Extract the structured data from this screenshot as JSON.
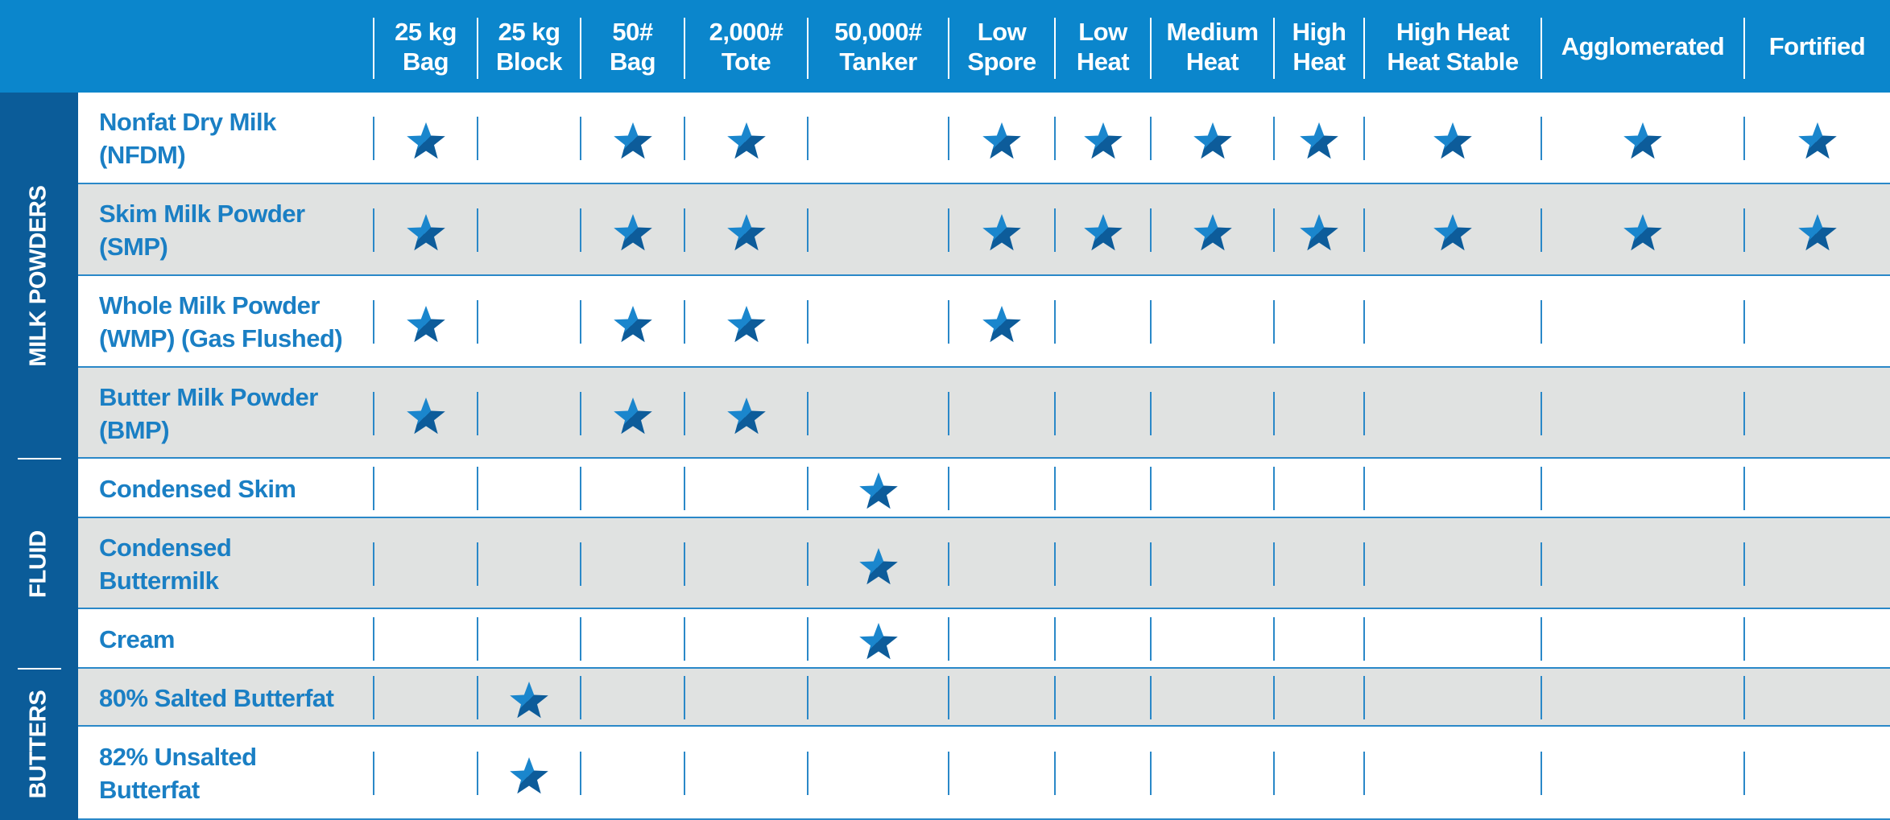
{
  "header": {
    "columns": [
      [
        "25 kg",
        "Bag"
      ],
      [
        "25 kg",
        "Block"
      ],
      [
        "50#",
        "Bag"
      ],
      [
        "2,000#",
        "Tote"
      ],
      [
        "50,000#",
        "Tanker"
      ],
      [
        "Low",
        "Spore"
      ],
      [
        "Low",
        "Heat"
      ],
      [
        "Medium",
        "Heat"
      ],
      [
        "High",
        "Heat"
      ],
      [
        "High Heat",
        "Heat Stable"
      ],
      [
        "Agglomerated"
      ],
      [
        "Fortified"
      ]
    ]
  },
  "groups": [
    {
      "label": "MILK POWDERS",
      "rows": [
        {
          "label": [
            "Nonfat Dry Milk",
            "(NFDM)"
          ],
          "cells": [
            true,
            false,
            true,
            true,
            false,
            true,
            true,
            true,
            true,
            true,
            true,
            true
          ]
        },
        {
          "label": [
            "Skim Milk Powder",
            "(SMP)"
          ],
          "cells": [
            true,
            false,
            true,
            true,
            false,
            true,
            true,
            true,
            true,
            true,
            true,
            true
          ]
        },
        {
          "label": [
            "Whole Milk Powder",
            "(WMP) (Gas Flushed)"
          ],
          "cells": [
            true,
            false,
            true,
            true,
            false,
            true,
            false,
            false,
            false,
            false,
            false,
            false
          ]
        },
        {
          "label": [
            "Butter Milk Powder",
            "(BMP)"
          ],
          "cells": [
            true,
            false,
            true,
            true,
            false,
            false,
            false,
            false,
            false,
            false,
            false,
            false
          ]
        }
      ]
    },
    {
      "label": "FLUID",
      "rows": [
        {
          "label": [
            "Condensed Skim"
          ],
          "cells": [
            false,
            false,
            false,
            false,
            true,
            false,
            false,
            false,
            false,
            false,
            false,
            false
          ]
        },
        {
          "label": [
            "Condensed",
            "Buttermilk"
          ],
          "cells": [
            false,
            false,
            false,
            false,
            true,
            false,
            false,
            false,
            false,
            false,
            false,
            false
          ]
        },
        {
          "label": [
            "Cream"
          ],
          "cells": [
            false,
            false,
            false,
            false,
            true,
            false,
            false,
            false,
            false,
            false,
            false,
            false
          ]
        }
      ]
    },
    {
      "label": "BUTTERS",
      "rows": [
        {
          "label": [
            "80% Salted Butterfat"
          ],
          "cells": [
            false,
            true,
            false,
            false,
            false,
            false,
            false,
            false,
            false,
            false,
            false,
            false
          ]
        },
        {
          "label": [
            "82% Unsalted",
            "Butterfat"
          ],
          "cells": [
            false,
            true,
            false,
            false,
            false,
            false,
            false,
            false,
            false,
            false,
            false,
            false
          ]
        }
      ]
    }
  ]
}
